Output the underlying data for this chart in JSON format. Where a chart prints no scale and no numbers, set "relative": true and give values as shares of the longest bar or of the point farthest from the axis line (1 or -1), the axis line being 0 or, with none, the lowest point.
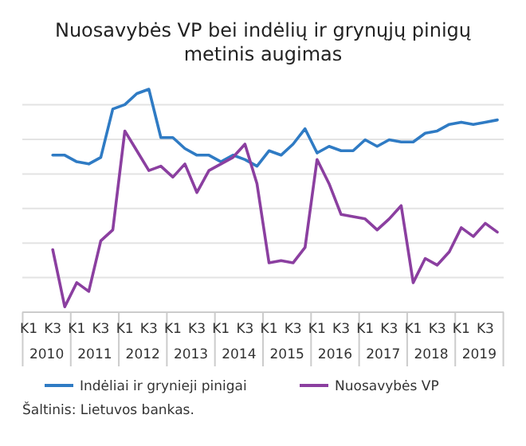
{
  "chart_data": {
    "type": "line",
    "title": "Nuosavybės VP bei indėlių ir grynųjų pinigų metinis augimas",
    "relative": true,
    "grid": true,
    "legend": "bottom",
    "categories": [
      "K1",
      null,
      "K3",
      null,
      "K1",
      null,
      "K3",
      null,
      "K1",
      null,
      "K3",
      null,
      "K1",
      null,
      "K3",
      null,
      "K1",
      null,
      "K3",
      null,
      "K1",
      null,
      "K3",
      null,
      "K1",
      null,
      "K3",
      null,
      "K1",
      null,
      "K3",
      null,
      "K1",
      null,
      "K3",
      null,
      "K1",
      null,
      "K3",
      null
    ],
    "series": [
      {
        "name": "Indėliai ir grynieji pinigai",
        "color": "#2f7bc4",
        "values": [
          null,
          null,
          0.7,
          0.7,
          0.67,
          0.66,
          0.69,
          0.91,
          0.93,
          0.98,
          1.0,
          0.78,
          0.78,
          0.73,
          0.7,
          0.7,
          0.67,
          0.7,
          0.68,
          0.65,
          0.72,
          0.7,
          0.75,
          0.82,
          0.71,
          0.74,
          0.72,
          0.72,
          0.77,
          0.74,
          0.77,
          0.76,
          0.76,
          0.8,
          0.81,
          0.84,
          0.85,
          0.84,
          0.85,
          0.86
        ]
      },
      {
        "name": "Nuosavybės VP",
        "color": "#8b3fa0",
        "values": [
          null,
          null,
          0.27,
          0.01,
          0.12,
          0.08,
          0.31,
          0.36,
          0.81,
          0.72,
          0.63,
          0.65,
          0.6,
          0.66,
          0.53,
          0.63,
          0.66,
          0.69,
          0.75,
          0.57,
          0.21,
          0.22,
          0.21,
          0.28,
          0.68,
          0.57,
          0.43,
          0.42,
          0.41,
          0.36,
          0.41,
          0.47,
          0.12,
          0.23,
          0.2,
          0.26,
          0.37,
          0.33,
          0.39,
          0.35
        ]
      }
    ],
    "annotations": [
      "2010",
      "2011",
      "2012",
      "2013",
      "2014",
      "2015",
      "2016",
      "2017",
      "2018",
      "2019",
      "Šaltinis: Lietuvos bankas."
    ]
  }
}
